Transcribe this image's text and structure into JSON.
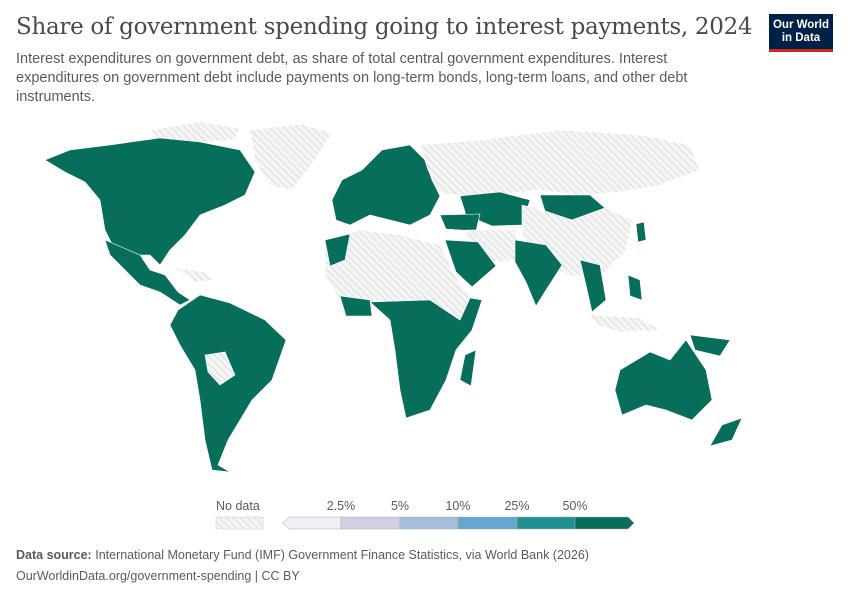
{
  "header": {
    "title": "Share of government spending going to interest payments, 2024",
    "subtitle": "Interest expenditures on government debt, as share of total central government expenditures. Interest expenditures on government debt include payments on long-term bonds, long-term loans, and other debt instruments."
  },
  "logo": {
    "line1": "Our World",
    "line2": "in Data"
  },
  "legend": {
    "no_data_label": "No data",
    "ticks": [
      "2.5%",
      "5%",
      "10%",
      "25%",
      "50%"
    ],
    "bins": [
      {
        "color": "#f4eff7"
      },
      {
        "color": "#d1d1e5"
      },
      {
        "color": "#a8bcdb"
      },
      {
        "color": "#65a7cf"
      },
      {
        "color": "#1e9092"
      },
      {
        "color": "#086e5c"
      }
    ]
  },
  "colors": {
    "data": "#086e5c",
    "no_data": "#f2f2f2",
    "hatch": "#d9d9d9",
    "border": "#ffffff"
  },
  "footer": {
    "source_label": "Data source:",
    "source": "International Monetary Fund (IMF) Government Finance Statistics, via World Bank (2026)",
    "url": "OurWorldinData.org/government-spending | CC BY"
  }
}
